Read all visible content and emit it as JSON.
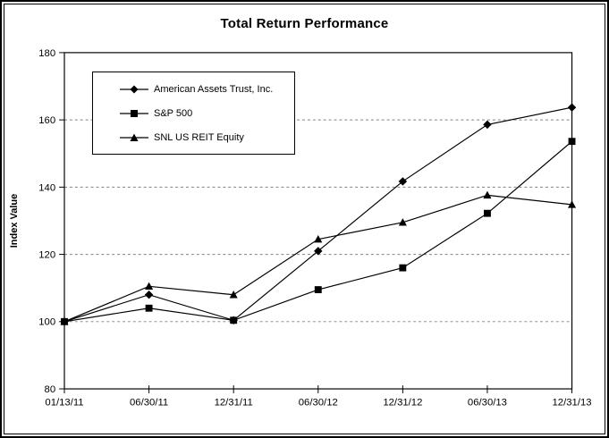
{
  "chart_data": {
    "type": "line",
    "title": "Total Return Performance",
    "ylabel": "Index Value",
    "xlabel": "",
    "ylim": [
      80,
      180
    ],
    "yticks": [
      180,
      160,
      140,
      120,
      100,
      80
    ],
    "grid": "horizontal-dashed",
    "grid_color": "#808080",
    "axis_color": "#000000",
    "line_color": "#000000",
    "legend_position": "upper-left-inside",
    "categories": [
      "01/13/11",
      "06/30/11",
      "12/31/11",
      "06/30/12",
      "12/31/12",
      "06/30/13",
      "12/31/13"
    ],
    "series": [
      {
        "name": "American Assets Trust, Inc.",
        "marker": "diamond",
        "color": "#000000",
        "values": [
          100,
          108,
          100.4,
          121,
          141.7,
          158.6,
          163.7
        ]
      },
      {
        "name": "S&P 500",
        "marker": "square",
        "color": "#000000",
        "values": [
          100,
          104,
          100.4,
          109.5,
          116,
          132.2,
          153.6
        ]
      },
      {
        "name": "SNL US REIT Equity",
        "marker": "triangle",
        "color": "#000000",
        "values": [
          100,
          110.5,
          108,
          124.5,
          129.5,
          137.6,
          134.8
        ]
      }
    ]
  }
}
